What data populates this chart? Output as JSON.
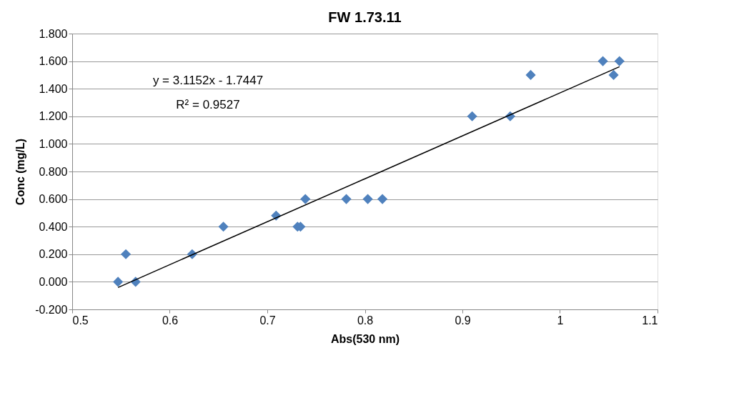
{
  "chart_data": {
    "type": "scatter",
    "title": "FW 1.73.11",
    "xlabel": "Abs(530 nm)",
    "ylabel": "Conc (mg/L)",
    "series": [
      {
        "type": "scatter",
        "color": "#4f81bd",
        "marker": "diamond",
        "x": [
          0.547,
          0.555,
          0.565,
          0.623,
          0.655,
          0.709,
          0.731,
          0.734,
          0.739,
          0.781,
          0.803,
          0.818,
          0.91,
          0.949,
          0.97,
          1.044,
          1.055,
          1.061
        ],
        "values": [
          0,
          0.2,
          0,
          0.2,
          0.4,
          0.48,
          0.4,
          0.4,
          0.6,
          0.6,
          0.6,
          0.6,
          1.2,
          1.2,
          1.5,
          1.6,
          1.5,
          1.6
        ]
      },
      {
        "type": "line",
        "color": "#000000",
        "x": [
          0.547,
          1.061
        ],
        "values": [
          -0.041,
          1.56
        ]
      }
    ],
    "annotations": [
      "y = 3.1152x - 1.7447",
      "R² = 0.9527"
    ],
    "xlim": [
      0.5,
      1.1
    ],
    "xticks": [
      0.5,
      0.6,
      0.7,
      0.8,
      0.9,
      1,
      1.1
    ],
    "ylim": [
      -0.2,
      1.8
    ],
    "yticks": [
      {
        "value": -0.2,
        "label": "-0.200"
      },
      {
        "value": 0,
        "label": "0.000"
      },
      {
        "value": 0.2,
        "label": "0.200"
      },
      {
        "value": 0.4,
        "label": "0.400"
      },
      {
        "value": 0.6,
        "label": "0.600"
      },
      {
        "value": 0.8,
        "label": "0.800"
      },
      {
        "value": 1.0,
        "label": "1.000"
      },
      {
        "value": 1.2,
        "label": "1.200"
      },
      {
        "value": 1.4,
        "label": "1.400"
      },
      {
        "value": 1.6,
        "label": "1.600"
      },
      {
        "value": 1.8,
        "label": "1.800"
      }
    ],
    "grid": "y",
    "legend": false
  }
}
